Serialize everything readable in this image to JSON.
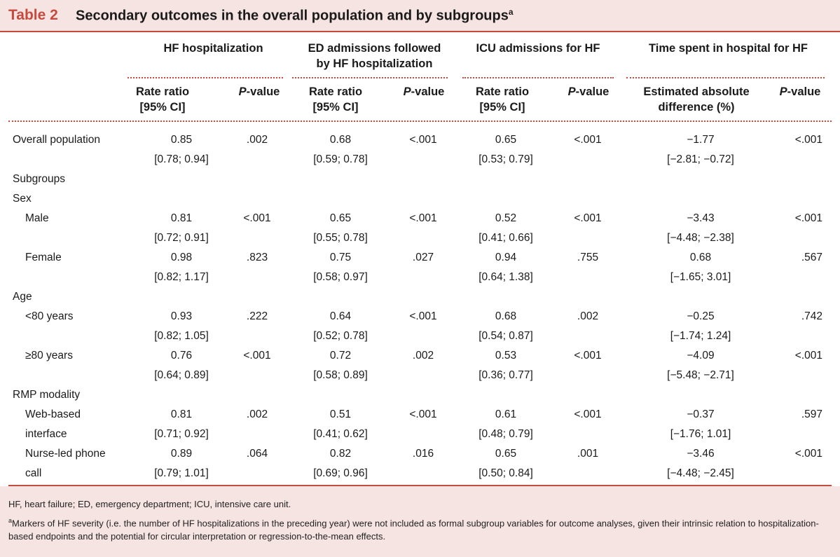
{
  "table": {
    "number": "Table 2",
    "title": "Secondary outcomes in the overall population and by subgroups",
    "title_sup": "a"
  },
  "groups": {
    "hf": "HF hospitalization",
    "ed_1": "ED admissions followed",
    "ed_2": "by HF hospitalization",
    "icu": "ICU admissions for HF",
    "time": "Time spent in hospital for HF"
  },
  "sub": {
    "rr_1": "Rate ratio",
    "rr_2": "[95% CI]",
    "p_ital": "P",
    "p_rest": "-value",
    "ead_1": "Estimated absolute",
    "ead_2": "difference (%)"
  },
  "rows": [
    {
      "label": "Overall population",
      "label2": "",
      "indent": false,
      "hf_rr": "0.85",
      "hf_ci": "[0.78; 0.94]",
      "hf_p": ".002",
      "ed_rr": "0.68",
      "ed_ci": "[0.59; 0.78]",
      "ed_p": "<.001",
      "icu_rr": "0.65",
      "icu_ci": "[0.53; 0.79]",
      "icu_p": "<.001",
      "t_v": "−1.77",
      "t_ci": "[−2.81; −0.72]",
      "t_p": "<.001"
    },
    {
      "label": "Male",
      "label2": "",
      "indent": true,
      "hf_rr": "0.81",
      "hf_ci": "[0.72; 0.91]",
      "hf_p": "<.001",
      "ed_rr": "0.65",
      "ed_ci": "[0.55; 0.78]",
      "ed_p": "<.001",
      "icu_rr": "0.52",
      "icu_ci": "[0.41; 0.66]",
      "icu_p": "<.001",
      "t_v": "−3.43",
      "t_ci": "[−4.48; −2.38]",
      "t_p": "<.001"
    },
    {
      "label": "Female",
      "label2": "",
      "indent": true,
      "hf_rr": "0.98",
      "hf_ci": "[0.82; 1.17]",
      "hf_p": ".823",
      "ed_rr": "0.75",
      "ed_ci": "[0.58; 0.97]",
      "ed_p": ".027",
      "icu_rr": "0.94",
      "icu_ci": "[0.64; 1.38]",
      "icu_p": ".755",
      "t_v": "0.68",
      "t_ci": "[−1.65; 3.01]",
      "t_p": ".567"
    },
    {
      "label": "<80 years",
      "label2": "",
      "indent": true,
      "hf_rr": "0.93",
      "hf_ci": "[0.82; 1.05]",
      "hf_p": ".222",
      "ed_rr": "0.64",
      "ed_ci": "[0.52; 0.78]",
      "ed_p": "<.001",
      "icu_rr": "0.68",
      "icu_ci": "[0.54; 0.87]",
      "icu_p": ".002",
      "t_v": "−0.25",
      "t_ci": "[−1.74; 1.24]",
      "t_p": ".742"
    },
    {
      "label": "≥80 years",
      "label2": "",
      "indent": true,
      "hf_rr": "0.76",
      "hf_ci": "[0.64; 0.89]",
      "hf_p": "<.001",
      "ed_rr": "0.72",
      "ed_ci": "[0.58; 0.89]",
      "ed_p": ".002",
      "icu_rr": "0.53",
      "icu_ci": "[0.36; 0.77]",
      "icu_p": "<.001",
      "t_v": "−4.09",
      "t_ci": "[−5.48; −2.71]",
      "t_p": "<.001"
    },
    {
      "label": "Web-based",
      "label2": "interface",
      "indent": true,
      "hf_rr": "0.81",
      "hf_ci": "[0.71; 0.92]",
      "hf_p": ".002",
      "ed_rr": "0.51",
      "ed_ci": "[0.41; 0.62]",
      "ed_p": "<.001",
      "icu_rr": "0.61",
      "icu_ci": "[0.48; 0.79]",
      "icu_p": "<.001",
      "t_v": "−0.37",
      "t_ci": "[−1.76; 1.01]",
      "t_p": ".597"
    },
    {
      "label": "Nurse-led phone",
      "label2": "call",
      "indent": true,
      "hf_rr": "0.89",
      "hf_ci": "[0.79; 1.01]",
      "hf_p": ".064",
      "ed_rr": "0.82",
      "ed_ci": "[0.69; 0.96]",
      "ed_p": ".016",
      "icu_rr": "0.65",
      "icu_ci": "[0.50; 0.84]",
      "icu_p": ".001",
      "t_v": "−3.46",
      "t_ci": "[−4.48; −2.45]",
      "t_p": "<.001"
    }
  ],
  "sections": {
    "subgroups": "Subgroups",
    "sex": "Sex",
    "age": "Age",
    "rmp": "RMP modality"
  },
  "footnotes": {
    "abbrev": "HF, heart failure; ED, emergency department; ICU, intensive care unit.",
    "a_mark": "a",
    "a_text": "Markers of HF severity (i.e. the number of HF hospitalizations in the preceding year) were not included as formal subgroup variables for outcome analyses, given their intrinsic relation to hospitalization-based endpoints and the potential for circular interpretation or regression-to-the-mean effects."
  }
}
